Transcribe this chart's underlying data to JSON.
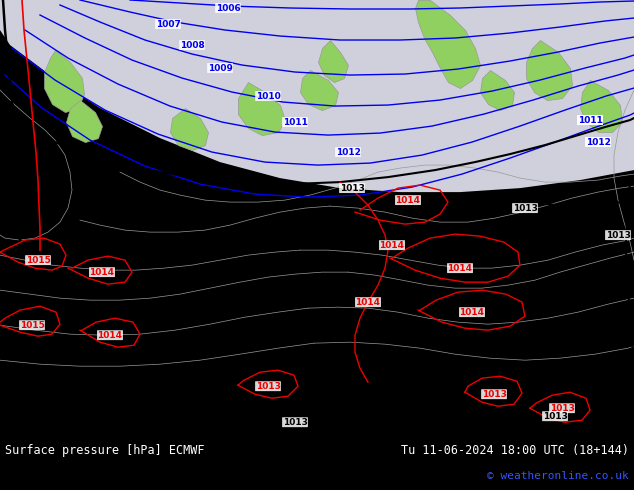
{
  "title_left": "Surface pressure [hPa] ECMWF",
  "title_right": "Tu 11-06-2024 18:00 UTC (18+144)",
  "copyright": "© weatheronline.co.uk",
  "bg_green": "#90d060",
  "sea_gray": "#c8c8d8",
  "land_green": "#90d060",
  "border_color": "#999999",
  "blue_iso": "#0000ee",
  "black_iso": "#000000",
  "red_iso": "#ee0000",
  "footer_bg": "#000000",
  "footer_fg": "#ffffff",
  "copyright_color": "#3355ff",
  "figsize": [
    6.34,
    4.9
  ],
  "dpi": 100
}
